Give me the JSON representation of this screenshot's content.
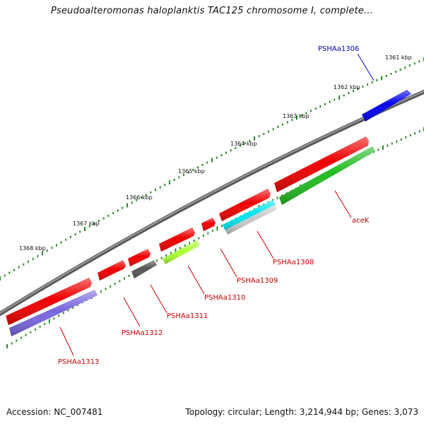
{
  "header": {
    "title": "Pseudoalteromonas haloplanktis TAC125 chromosome I, complete..."
  },
  "footer": {
    "accession": "Accession: NC_007481",
    "topology": "Topology: circular; Length: 3,214,944 bp; Genes: 3,073"
  },
  "scale": {
    "labels": [
      "1361 kbp",
      "1362 kbp",
      "1363 kbp",
      "1364 kbp",
      "1365 kbp",
      "1366 kbp",
      "1367 kbp",
      "1368 kbp"
    ]
  },
  "genes": [
    {
      "label": "PSHAa1306",
      "color": "#0000ee",
      "strand": "outer",
      "label_color": "#0000cc"
    },
    {
      "label": "aceK",
      "color": "#22bb22",
      "strand": "inner",
      "label_color": "#cc0000"
    },
    {
      "label": "",
      "color": "#ee0000",
      "strand": "outer",
      "label_color": "#cc0000"
    },
    {
      "label": "PSHAa1308",
      "color": "#c8c8c8",
      "strand": "inner",
      "label_color": "#cc0000"
    },
    {
      "label": "PSHAa1309",
      "color": "#00e5ee",
      "strand": "inner",
      "label_color": "#cc0000"
    },
    {
      "label": "",
      "color": "#ee0000",
      "strand": "outer",
      "label_color": "#cc0000"
    },
    {
      "label": "",
      "color": "#ee0000",
      "strand": "outer",
      "label_color": "#cc0000"
    },
    {
      "label": "PSHAa1310",
      "color": "#aaff33",
      "strand": "inner",
      "label_color": "#cc0000"
    },
    {
      "label": "",
      "color": "#ee0000",
      "strand": "outer",
      "label_color": "#cc0000"
    },
    {
      "label": "PSHAa1311",
      "color": "#555555",
      "strand": "inner",
      "label_color": "#cc0000"
    },
    {
      "label": "",
      "color": "#ee0000",
      "strand": "outer",
      "label_color": "#cc0000"
    },
    {
      "label": "PSHAa1312",
      "color": "#ee0000",
      "strand": "outer",
      "label_color": "#cc0000"
    },
    {
      "label": "PSHAa1313",
      "color": "#7766dd",
      "strand": "inner",
      "label_color": "#cc0000"
    }
  ],
  "colors": {
    "backbone": "#777777",
    "tick": "#2a8a2a",
    "scale_text": "#111111"
  }
}
